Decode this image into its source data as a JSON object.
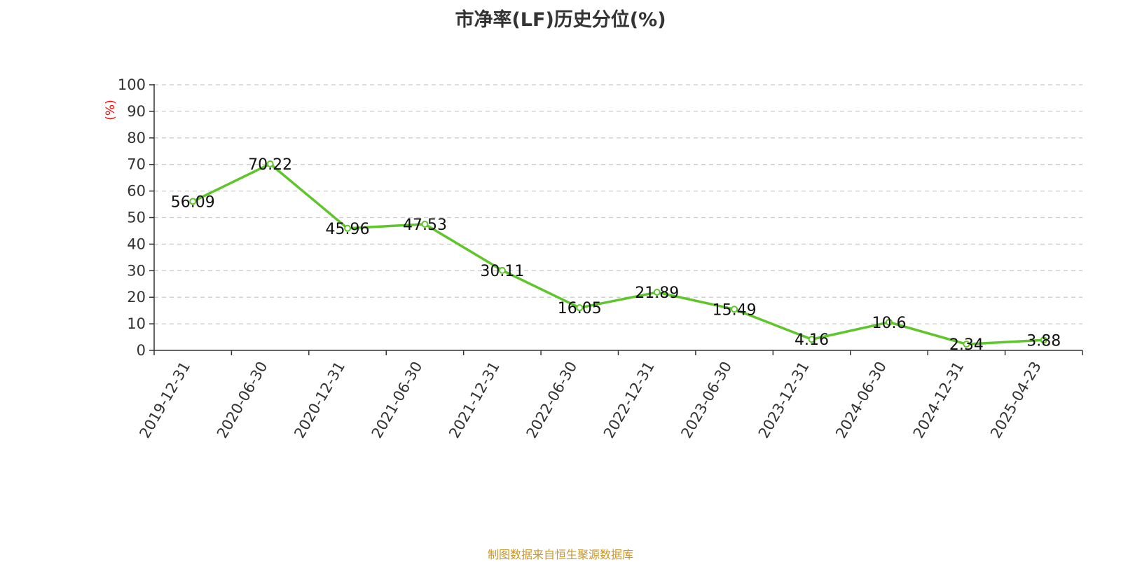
{
  "title": "市净率(LF)历史分位(%)",
  "source_note": "制图数据来自恒生聚源数据库",
  "colors": {
    "line": "#5ec52a",
    "unit_label": "#ff0000",
    "grid": "#cccccc",
    "source": "#c8962a"
  },
  "chart_data": {
    "type": "line",
    "title": "市净率(LF)历史分位(%)",
    "ylabel": "(%)",
    "xlabel": "",
    "ylim": [
      0,
      100
    ],
    "yticks": [
      0,
      10,
      20,
      30,
      40,
      50,
      60,
      70,
      80,
      90,
      100
    ],
    "grid": true,
    "categories": [
      "2019-12-31",
      "2020-06-30",
      "2020-12-31",
      "2021-06-30",
      "2021-12-31",
      "2022-06-30",
      "2022-12-31",
      "2023-06-30",
      "2023-12-31",
      "2024-06-30",
      "2024-12-31",
      "2025-04-23"
    ],
    "series": [
      {
        "values": [
          56.09,
          70.22,
          45.96,
          47.53,
          30.11,
          16.05,
          21.89,
          15.49,
          4.16,
          10.6,
          2.34,
          3.88
        ],
        "labels": [
          "56.09",
          "70.22",
          "45.96",
          "47.53",
          "30.11",
          "16.05",
          "21.89",
          "15.49",
          "4.16",
          "10.6",
          "2.34",
          "3.88"
        ]
      }
    ]
  }
}
